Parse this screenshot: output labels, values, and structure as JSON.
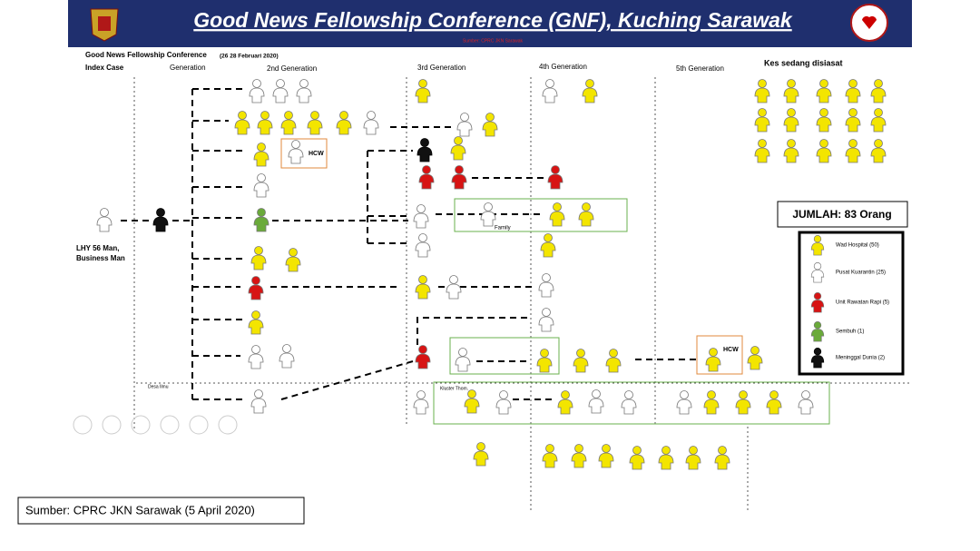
{
  "header": {
    "title": "Good News Fellowship Conference (GNF), Kuching Sarawak",
    "source_note": "Sumber: CPRC JKN Sarawak"
  },
  "slide": {
    "heading": "Good News Fellowship Conference",
    "dates": "(26 28 Februari 2020)",
    "columns": [
      "Index Case",
      "Generation",
      "2nd Generation",
      "3rd Generation",
      "4th Generation",
      "5th Generation"
    ],
    "index_case": [
      "LHY 56 Man,",
      "Business Man"
    ],
    "hcw": [
      "HCW",
      "HCW"
    ],
    "family": "Family",
    "desa": "Desa Ilmu",
    "kluster": "Kluster Thom.",
    "pending": "Kes sedang disiasat",
    "total": "JUMLAH: 83 Orang",
    "legend": [
      "Wad Hospital (50)",
      "Pusat Kuarantin (25)",
      "Unit Rawatan Rapi (5)",
      "Sembuh (1)",
      "Meninggal Dunia (2)"
    ]
  },
  "footer": "Sumber: CPRC JKN Sarawak (5 April 2020)"
}
